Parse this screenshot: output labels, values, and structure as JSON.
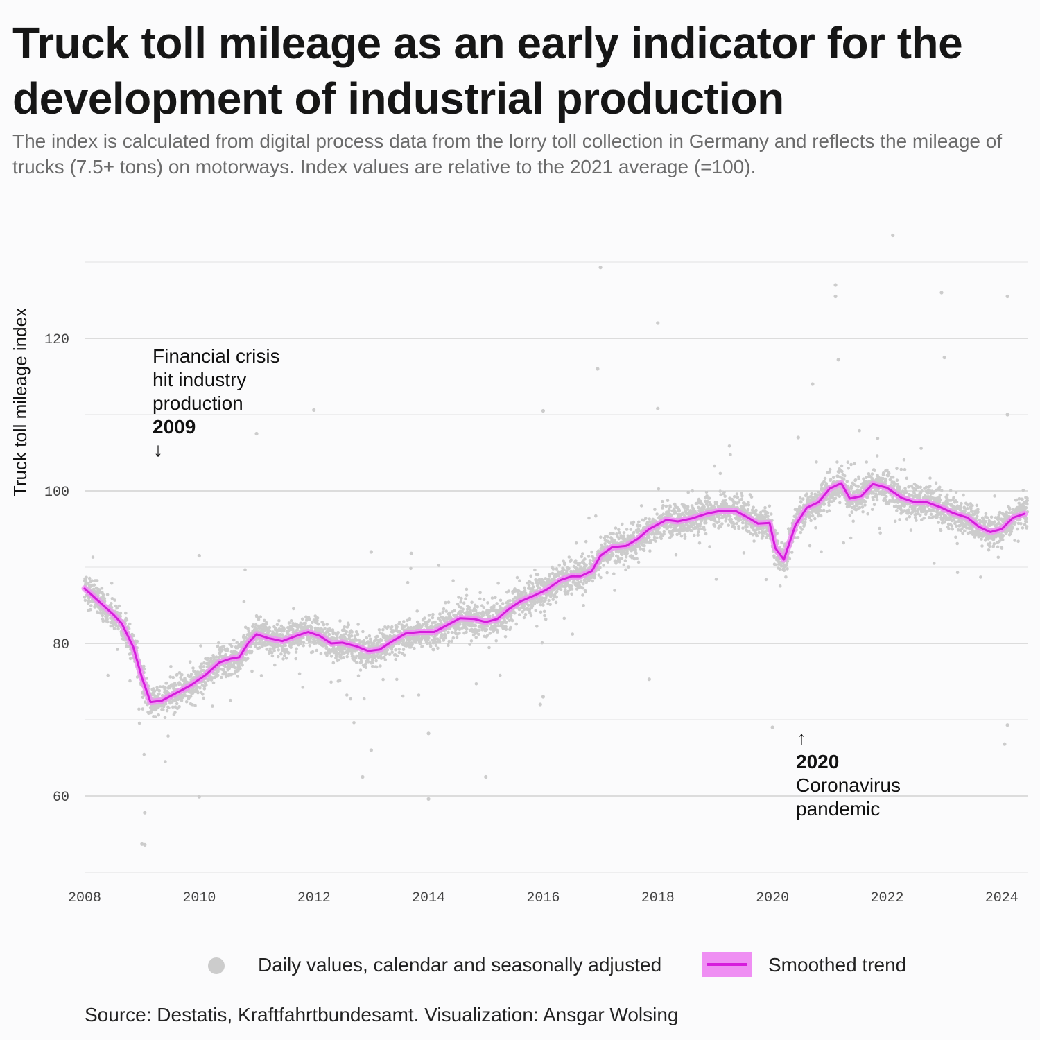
{
  "title": "Truck toll mileage as an early indicator for the development of industrial production",
  "subtitle": "The index is calculated from digital process data from the lorry toll collection in Germany and reflects the mileage of trucks (7.5+ tons) on motorways. Index values are relative to the 2021 average (=100).",
  "legend": {
    "daily_label": "Daily values, calendar and seasonally adjusted",
    "trend_label": "Smoothed trend"
  },
  "source": "Source: Destatis, Kraftfahrtbundesamt. Visualization: Ansgar Wolsing",
  "annotations": {
    "crisis": {
      "lines": [
        "Financial crisis",
        "hit industry",
        "production"
      ],
      "year": "2009",
      "arrow": "↓"
    },
    "covid": {
      "arrow": "↑",
      "year": "2020",
      "lines": [
        "Coronavirus",
        "pandemic"
      ]
    }
  },
  "colors": {
    "trend": "#d61cdc",
    "trend_band": "#ef8ff3",
    "points": "#cccccc",
    "grid": "#c9c9c9"
  },
  "chart_data": {
    "type": "scatter",
    "ylabel": "Truck toll mileage index",
    "xlabel": "",
    "xlim": [
      2008,
      2024.45
    ],
    "ylim": [
      50,
      130
    ],
    "x_ticks": [
      2008,
      2010,
      2012,
      2014,
      2016,
      2018,
      2020,
      2022,
      2024
    ],
    "y_ticks": [
      60,
      80,
      100,
      120
    ],
    "grid": true,
    "legend_position": "bottom",
    "series": [
      {
        "name": "Smoothed trend",
        "kind": "line",
        "x": [
          2008.0,
          2008.25,
          2008.5,
          2008.65,
          2008.85,
          2009.0,
          2009.15,
          2009.35,
          2009.6,
          2009.85,
          2010.1,
          2010.35,
          2010.55,
          2010.7,
          2010.85,
          2011.0,
          2011.2,
          2011.45,
          2011.7,
          2011.9,
          2012.1,
          2012.3,
          2012.5,
          2012.75,
          2012.95,
          2013.15,
          2013.35,
          2013.6,
          2013.85,
          2014.1,
          2014.35,
          2014.55,
          2014.8,
          2015.0,
          2015.2,
          2015.4,
          2015.6,
          2015.85,
          2016.05,
          2016.3,
          2016.5,
          2016.65,
          2016.85,
          2017.0,
          2017.2,
          2017.45,
          2017.65,
          2017.85,
          2018.15,
          2018.35,
          2018.6,
          2018.85,
          2019.1,
          2019.35,
          2019.55,
          2019.75,
          2019.95,
          2020.05,
          2020.2,
          2020.4,
          2020.6,
          2020.8,
          2021.0,
          2021.2,
          2021.35,
          2021.55,
          2021.75,
          2022.0,
          2022.25,
          2022.45,
          2022.7,
          2022.95,
          2023.15,
          2023.4,
          2023.6,
          2023.8,
          2024.0,
          2024.2,
          2024.4
        ],
        "y": [
          87.2,
          85.5,
          83.8,
          82.6,
          79.5,
          75.5,
          72.3,
          72.5,
          73.5,
          74.5,
          75.8,
          77.5,
          78.0,
          78.2,
          80.0,
          81.2,
          80.7,
          80.3,
          81.0,
          81.5,
          81.0,
          80.0,
          80.1,
          79.6,
          79.0,
          79.2,
          80.2,
          81.3,
          81.5,
          81.5,
          82.5,
          83.3,
          83.2,
          82.8,
          83.2,
          84.5,
          85.5,
          86.3,
          87.0,
          88.3,
          88.8,
          88.8,
          89.5,
          91.5,
          92.6,
          92.8,
          93.7,
          95.0,
          96.2,
          96.0,
          96.4,
          97.0,
          97.4,
          97.4,
          96.6,
          95.7,
          95.8,
          92.5,
          91.0,
          95.5,
          97.8,
          98.5,
          100.3,
          101.0,
          99.0,
          99.3,
          100.9,
          100.4,
          99.1,
          98.6,
          98.5,
          97.8,
          97.1,
          96.5,
          95.3,
          94.6,
          95.0,
          96.5,
          97.0
        ]
      },
      {
        "name": "Daily values, calendar and seasonally adjusted",
        "kind": "scatter",
        "noise_sd": 2.0,
        "note": "dense daily cloud around the trend",
        "outliers": [
          [
            2017.0,
            129.3
          ],
          [
            2018.0,
            122.0
          ],
          [
            2022.1,
            133.5
          ],
          [
            2022.95,
            126.0
          ],
          [
            2024.1,
            125.5
          ],
          [
            2021.1,
            127.0
          ],
          [
            2021.1,
            125.5
          ],
          [
            2023.0,
            117.5
          ],
          [
            2016.95,
            116.0
          ],
          [
            2021.15,
            117.2
          ],
          [
            2009.05,
            57.8
          ],
          [
            2009.0,
            53.7
          ],
          [
            2009.05,
            53.6
          ],
          [
            2014.0,
            59.6
          ],
          [
            2010.0,
            59.9
          ],
          [
            2020.0,
            69.0
          ],
          [
            2024.05,
            66.8
          ],
          [
            2024.1,
            69.3
          ],
          [
            2012.85,
            62.5
          ],
          [
            2015.0,
            62.5
          ],
          [
            2012.0,
            110.6
          ],
          [
            2011.0,
            107.5
          ],
          [
            2016.0,
            110.5
          ],
          [
            2018.0,
            110.8
          ],
          [
            2020.45,
            107.0
          ],
          [
            2020.7,
            114.0
          ],
          [
            2024.1,
            110.0
          ],
          [
            2010.0,
            91.5
          ],
          [
            2013.0,
            92.0
          ],
          [
            2013.7,
            91.8
          ],
          [
            2015.95,
            72.0
          ],
          [
            2016.0,
            73.0
          ],
          [
            2014.0,
            68.2
          ],
          [
            2013.0,
            66.0
          ],
          [
            2017.85,
            75.3
          ]
        ]
      }
    ]
  }
}
